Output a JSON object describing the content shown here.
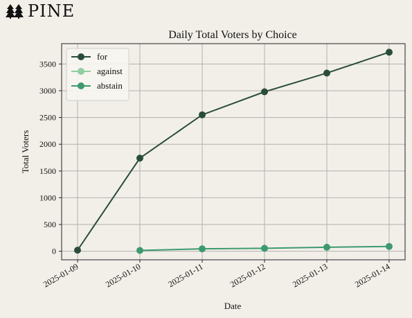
{
  "brand": {
    "name": "PINE",
    "logo_icon": "pine-trees-icon"
  },
  "chart_data": {
    "type": "line",
    "title": "Daily Total Voters by Choice",
    "xlabel": "Date",
    "ylabel": "Total Voters",
    "x": [
      "2025-01-09",
      "2025-01-10",
      "2025-01-11",
      "2025-01-12",
      "2025-01-13",
      "2025-01-14"
    ],
    "ylim": [
      -160,
      3880
    ],
    "yticks": [
      0,
      500,
      1000,
      1500,
      2000,
      2500,
      3000,
      3500
    ],
    "grid": true,
    "legend_position": "top-left",
    "series": [
      {
        "name": "for",
        "color": "#2a4d3a",
        "values": [
          20,
          1740,
          2550,
          2980,
          3330,
          3720
        ]
      },
      {
        "name": "against",
        "color": "#8fce9f",
        "values": [
          null,
          null,
          null,
          null,
          null,
          null
        ]
      },
      {
        "name": "abstain",
        "color": "#3c9a6e",
        "values": [
          null,
          15,
          45,
          55,
          75,
          90
        ]
      }
    ]
  }
}
